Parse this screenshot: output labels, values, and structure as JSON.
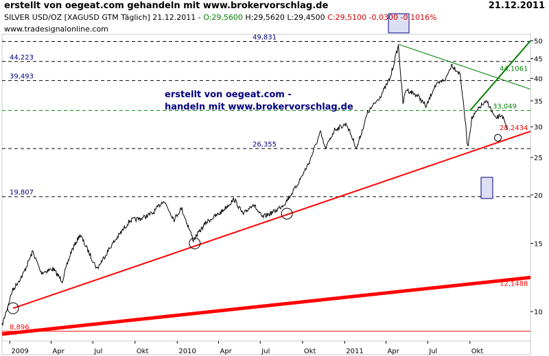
{
  "header": {
    "title": "erstellt von oegeat.com gehandeln mit www.brokervorschlag.de",
    "date": "21.12.2011"
  },
  "info": {
    "instrument": "SILVER USD/OZ [XAGUSD GTM  Täglich] 21.12.2011 - ",
    "open": "O:29,5600",
    "high_low": " H:29,5620 L:29,4500 ",
    "close": "C:29,5100 -0,0300 -0,1016%",
    "source": "www.tradesignalonline.com"
  },
  "annotation": {
    "line1": "erstellt von oegeat.com -",
    "line2": "handeln mit www.brokervorschlag.de"
  },
  "colors": {
    "price": "#000000",
    "support_line": "#ff0000",
    "green_line": "#008000",
    "dashed_level": "#000080",
    "dashed_green": "#008000",
    "marker_box": "#dde0f5"
  },
  "chart_data": {
    "type": "line",
    "title": "SILVER USD/OZ [XAGUSD GTM Täglich]",
    "y_scale": "log",
    "ylim": [
      8.4,
      52
    ],
    "y_ticks": [
      10,
      15,
      20,
      25,
      30,
      35,
      40,
      45,
      50
    ],
    "x_ticks": [
      "2009",
      "Apr",
      "Jul",
      "Okt",
      "2010",
      "Apr",
      "Jul",
      "Okt",
      "2011",
      "Apr",
      "Jul",
      "Okt"
    ],
    "x_tick_dates": [
      "2009-01-01",
      "2009-04-01",
      "2009-07-01",
      "2009-10-01",
      "2010-01-01",
      "2010-04-01",
      "2010-07-01",
      "2010-10-01",
      "2011-01-01",
      "2011-04-01",
      "2011-07-01",
      "2011-10-01"
    ],
    "xlim": [
      "2008-12-15",
      "2012-02-10"
    ],
    "series": [
      {
        "values": [
          [
            "2008-12-15",
            9.2
          ],
          [
            "2009-01-06",
            11.3
          ],
          [
            "2009-01-30",
            12.5
          ],
          [
            "2009-02-20",
            14.3
          ],
          [
            "2009-03-10",
            12.6
          ],
          [
            "2009-04-05",
            12.9
          ],
          [
            "2009-04-25",
            12.0
          ],
          [
            "2009-05-15",
            14.3
          ],
          [
            "2009-06-03",
            15.8
          ],
          [
            "2009-06-20",
            14.4
          ],
          [
            "2009-07-10",
            12.9
          ],
          [
            "2009-08-10",
            14.8
          ],
          [
            "2009-09-20",
            17.2
          ],
          [
            "2009-10-15",
            17.4
          ],
          [
            "2009-11-10",
            18.0
          ],
          [
            "2009-12-02",
            19.4
          ],
          [
            "2009-12-25",
            17.3
          ],
          [
            "2010-01-10",
            18.5
          ],
          [
            "2010-02-05",
            15.3
          ],
          [
            "2010-03-05",
            17.0
          ],
          [
            "2010-04-05",
            18.0
          ],
          [
            "2010-05-05",
            19.5
          ],
          [
            "2010-05-25",
            17.8
          ],
          [
            "2010-06-15",
            19.0
          ],
          [
            "2010-07-05",
            17.5
          ],
          [
            "2010-08-03",
            18.2
          ],
          [
            "2010-08-23",
            19.0
          ],
          [
            "2010-09-15",
            20.8
          ],
          [
            "2010-10-15",
            24.2
          ],
          [
            "2010-11-09",
            29.0
          ],
          [
            "2010-11-20",
            26.3
          ],
          [
            "2010-12-10",
            29.5
          ],
          [
            "2011-01-05",
            30.5
          ],
          [
            "2011-01-27",
            26.4
          ],
          [
            "2011-02-20",
            32.6
          ],
          [
            "2011-03-20",
            36.0
          ],
          [
            "2011-04-10",
            40.0
          ],
          [
            "2011-04-28",
            48.6
          ],
          [
            "2011-05-08",
            34.5
          ],
          [
            "2011-05-15",
            37.5
          ],
          [
            "2011-06-10",
            36.0
          ],
          [
            "2011-06-28",
            33.8
          ],
          [
            "2011-07-15",
            38.0
          ],
          [
            "2011-08-10",
            40.0
          ],
          [
            "2011-08-22",
            43.4
          ],
          [
            "2011-09-10",
            41.0
          ],
          [
            "2011-09-22",
            30.0
          ],
          [
            "2011-09-26",
            26.5
          ],
          [
            "2011-10-05",
            31.5
          ],
          [
            "2011-10-25",
            34.0
          ],
          [
            "2011-11-08",
            34.8
          ],
          [
            "2011-11-25",
            31.5
          ],
          [
            "2011-12-10",
            32.2
          ],
          [
            "2011-12-21",
            29.5
          ]
        ]
      }
    ],
    "level_lines": [
      {
        "label": "49,831",
        "value": 49.831
      },
      {
        "label": "44,223",
        "value": 44.223
      },
      {
        "label": "39,493",
        "value": 39.493
      },
      {
        "label": "33,049",
        "value": 33.049
      },
      {
        "label": "26,355",
        "value": 26.355
      },
      {
        "label": "19,807",
        "value": 19.807
      },
      {
        "label": "8,896",
        "value": 8.896
      }
    ],
    "trend_lines": [
      {
        "label": "28,2434",
        "from": [
          "2009-01-08",
          10.2
        ],
        "to": [
          "2012-02-10",
          29.2
        ]
      },
      {
        "label": "12,1488",
        "from": [
          "2008-12-15",
          8.75
        ],
        "to": [
          "2012-02-10",
          12.25
        ]
      },
      {
        "label": "44,1061",
        "from": [
          "2011-04-28",
          49.0
        ],
        "to": [
          "2012-02-10",
          37.5
        ]
      },
      {
        "label": "",
        "from": [
          "2011-10-01",
          33.0
        ],
        "to": [
          "2012-02-10",
          50.0
        ]
      }
    ]
  }
}
